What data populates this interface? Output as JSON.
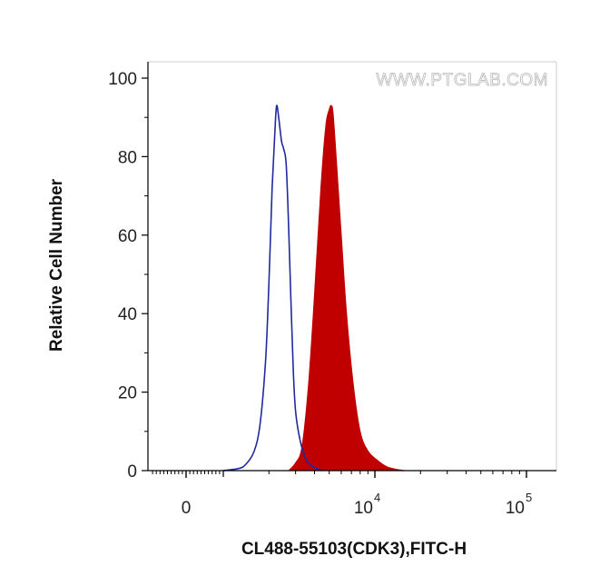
{
  "chart_data": {
    "type": "area",
    "title": "",
    "xlabel": "CL488-55103(CDK3),FITC-H",
    "ylabel": "Relative Cell Number",
    "watermark": "WWW.PTGLAB.COM",
    "x_scale": "biexponential (log above 10^3)",
    "ylim": [
      0,
      100
    ],
    "y_ticks": [
      0,
      20,
      40,
      60,
      80,
      100
    ],
    "x_ticks": [
      {
        "value": 0,
        "base": "0",
        "exp": ""
      },
      {
        "value": 10000,
        "base": "10",
        "exp": "4"
      },
      {
        "value": 100000,
        "base": "10",
        "exp": "5"
      }
    ],
    "grid": false,
    "series": [
      {
        "style": "outline",
        "color": "#1f2a9e",
        "points": [
          [
            1000,
            0
          ],
          [
            1250,
            0.5
          ],
          [
            1400,
            1.5
          ],
          [
            1600,
            5
          ],
          [
            1750,
            12
          ],
          [
            1900,
            28
          ],
          [
            2000,
            48
          ],
          [
            2100,
            72
          ],
          [
            2200,
            88
          ],
          [
            2250,
            93
          ],
          [
            2320,
            90
          ],
          [
            2420,
            84
          ],
          [
            2500,
            82
          ],
          [
            2600,
            78
          ],
          [
            2700,
            62
          ],
          [
            2800,
            42
          ],
          [
            2900,
            25
          ],
          [
            3000,
            15
          ],
          [
            3200,
            8
          ],
          [
            3500,
            3
          ],
          [
            3900,
            1
          ],
          [
            4500,
            0
          ]
        ]
      },
      {
        "style": "filled",
        "color": "#c00000",
        "points": [
          [
            2700,
            0
          ],
          [
            3000,
            2
          ],
          [
            3300,
            6
          ],
          [
            3650,
            22
          ],
          [
            4000,
            45
          ],
          [
            4400,
            72
          ],
          [
            4750,
            88
          ],
          [
            5000,
            92
          ],
          [
            5150,
            93
          ],
          [
            5300,
            91
          ],
          [
            5600,
            78
          ],
          [
            6000,
            60
          ],
          [
            6500,
            40
          ],
          [
            7200,
            22
          ],
          [
            8000,
            10
          ],
          [
            9000,
            5
          ],
          [
            10500,
            2.5
          ],
          [
            12000,
            1
          ],
          [
            14000,
            0.3
          ],
          [
            16000,
            0
          ]
        ]
      }
    ]
  }
}
